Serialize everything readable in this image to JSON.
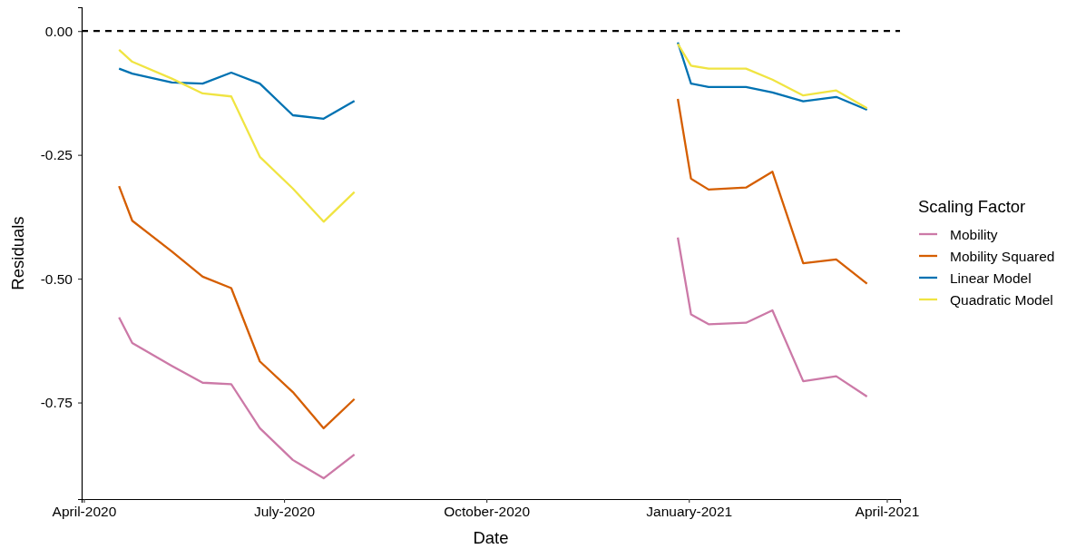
{
  "chart_data": {
    "type": "line",
    "xlabel": "Date",
    "ylabel": "Residuals",
    "legend_title": "Scaling Factor",
    "legend": "right",
    "grid": false,
    "marker": "none",
    "line_style": "solid",
    "xlim": [
      "2020-03-31",
      "2021-04-07"
    ],
    "xticks": [
      {
        "value": "2020-04-01",
        "label": "April-2020"
      },
      {
        "value": "2020-07-01",
        "label": "July-2020"
      },
      {
        "value": "2020-10-01",
        "label": "October-2020"
      },
      {
        "value": "2021-01-01",
        "label": "January-2021"
      },
      {
        "value": "2021-04-01",
        "label": "April-2021"
      }
    ],
    "ylim": [
      -0.945,
      0.048
    ],
    "yticks": [
      {
        "value": -0.75,
        "label": "-0.75"
      },
      {
        "value": -0.5,
        "label": "-0.50"
      },
      {
        "value": -0.25,
        "label": "-0.25"
      },
      {
        "value": 0,
        "label": "0.00"
      }
    ],
    "ref_lines": [
      {
        "axis": "y",
        "value": 0,
        "color": "#000000",
        "line_style": "dashed"
      }
    ],
    "x": [
      "2020-04-17",
      "2020-04-23",
      "2020-05-11",
      "2020-05-25",
      "2020-06-07",
      "2020-06-20",
      "2020-07-05",
      "2020-07-19",
      "2020-08-02",
      "2020-10-15",
      "2020-12-27",
      "2021-01-02",
      "2021-01-10",
      "2021-01-27",
      "2021-02-08",
      "2021-02-22",
      "2021-03-09",
      "2021-03-23"
    ],
    "series": [
      {
        "name": "Mobility",
        "color": "#cc79a7",
        "values": [
          -0.578,
          -0.63,
          -0.676,
          -0.71,
          -0.713,
          -0.802,
          -0.866,
          -0.903,
          -0.855,
          null,
          -0.417,
          -0.572,
          -0.592,
          -0.589,
          -0.564,
          -0.707,
          -0.697,
          -0.738
        ]
      },
      {
        "name": "Mobility Squared",
        "color": "#d55e00",
        "values": [
          -0.313,
          -0.383,
          -0.445,
          -0.496,
          -0.519,
          -0.667,
          -0.729,
          -0.802,
          -0.743,
          null,
          -0.137,
          -0.298,
          -0.32,
          -0.316,
          -0.284,
          -0.469,
          -0.461,
          -0.51
        ]
      },
      {
        "name": "Linear Model",
        "color": "#0072b2",
        "values": [
          -0.076,
          -0.086,
          -0.104,
          -0.106,
          -0.084,
          -0.106,
          -0.17,
          -0.177,
          -0.141,
          null,
          -0.023,
          -0.106,
          -0.113,
          -0.113,
          -0.124,
          -0.142,
          -0.133,
          -0.159
        ]
      },
      {
        "name": "Quadratic Model",
        "color": "#f0e442",
        "values": [
          -0.038,
          -0.062,
          -0.096,
          -0.126,
          -0.132,
          -0.254,
          -0.318,
          -0.385,
          -0.325,
          null,
          -0.026,
          -0.07,
          -0.076,
          -0.076,
          -0.098,
          -0.13,
          -0.12,
          -0.156
        ]
      }
    ]
  }
}
